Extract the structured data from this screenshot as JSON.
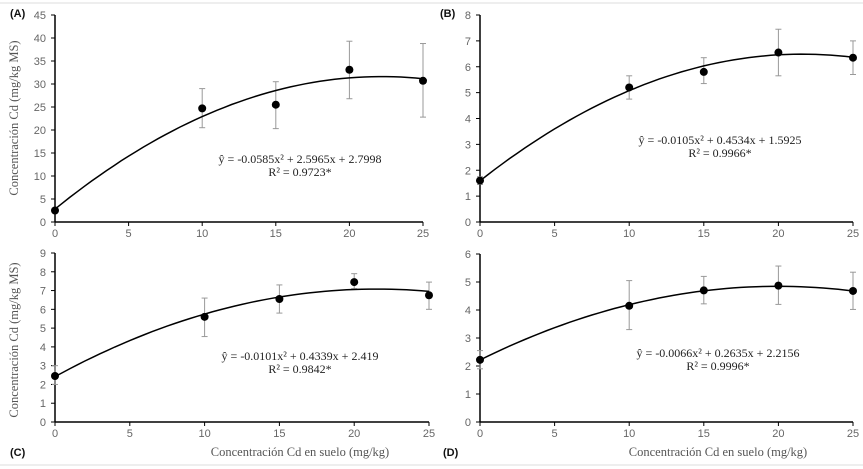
{
  "chart_data": [
    {
      "type": "scatter",
      "panel_label": "(A)",
      "ylabel": "Concentración Cd (mg/kg MS)",
      "xlabel": "",
      "x": [
        0,
        10,
        15,
        20,
        25
      ],
      "y": [
        2.5,
        24.7,
        25.5,
        33.1,
        30.7
      ],
      "err_low": [
        2.2,
        20.5,
        20.3,
        26.8,
        22.8
      ],
      "err_high": [
        2.8,
        29.0,
        30.5,
        39.3,
        38.8
      ],
      "ylim": [
        0,
        45
      ],
      "yticks": [
        0,
        5,
        10,
        15,
        20,
        25,
        30,
        35,
        40,
        45
      ],
      "xlim": [
        0,
        25
      ],
      "xticks": [
        0,
        5,
        10,
        15,
        20,
        25
      ],
      "fit": {
        "a": -0.0585,
        "b": 2.5965,
        "c": 2.7998
      },
      "equation": "ŷ = -0.0585x² + 2.5965x + 2.7998",
      "r2": "R² = 0.9723*"
    },
    {
      "type": "scatter",
      "panel_label": "(B)",
      "ylabel": "",
      "xlabel": "",
      "x": [
        0,
        10,
        15,
        20,
        25
      ],
      "y": [
        1.6,
        5.2,
        5.8,
        6.55,
        6.35
      ],
      "err_low": [
        1.45,
        4.75,
        5.35,
        5.65,
        5.7
      ],
      "err_high": [
        1.75,
        5.65,
        6.35,
        7.45,
        7.0
      ],
      "ylim": [
        0,
        8
      ],
      "yticks": [
        0,
        1,
        2,
        3,
        4,
        5,
        6,
        7,
        8
      ],
      "xlim": [
        0,
        25
      ],
      "xticks": [
        0,
        5,
        10,
        15,
        20,
        25
      ],
      "fit": {
        "a": -0.0105,
        "b": 0.4534,
        "c": 1.5925
      },
      "equation": "ŷ = -0.0105x² + 0.4534x + 1.5925",
      "r2": "R² = 0.9966*"
    },
    {
      "type": "scatter",
      "panel_label": "(C)",
      "ylabel": "Concentración Cd (mg/kg MS)",
      "xlabel": "Concentración Cd en suelo (mg/kg)",
      "x": [
        0,
        10,
        15,
        20,
        25
      ],
      "y": [
        2.45,
        5.6,
        6.55,
        7.45,
        6.75
      ],
      "err_low": [
        2.0,
        4.55,
        5.8,
        7.1,
        6.0
      ],
      "err_high": [
        3.0,
        6.6,
        7.3,
        7.9,
        7.45
      ],
      "ylim": [
        0,
        9
      ],
      "yticks": [
        0,
        1,
        2,
        3,
        4,
        5,
        6,
        7,
        8,
        9
      ],
      "xlim": [
        0,
        25
      ],
      "xticks": [
        0,
        5,
        10,
        15,
        20,
        25
      ],
      "fit": {
        "a": -0.0101,
        "b": 0.4339,
        "c": 2.419
      },
      "equation": "ŷ = -0.0101x² + 0.4339x + 2.419",
      "r2": "R² = 0.9842*"
    },
    {
      "type": "scatter",
      "panel_label": "(D)",
      "ylabel": "",
      "xlabel": "Concentración Cd en suelo (mg/kg)",
      "x": [
        0,
        10,
        15,
        20,
        25
      ],
      "y": [
        2.22,
        4.15,
        4.7,
        4.87,
        4.68
      ],
      "err_low": [
        1.9,
        3.3,
        4.22,
        4.2,
        4.02
      ],
      "err_high": [
        2.55,
        5.05,
        5.2,
        5.57,
        5.35
      ],
      "ylim": [
        0,
        6
      ],
      "yticks": [
        0,
        1,
        2,
        3,
        4,
        5,
        6
      ],
      "xlim": [
        0,
        25
      ],
      "xticks": [
        0,
        5,
        10,
        15,
        20,
        25
      ],
      "fit": {
        "a": -0.0066,
        "b": 0.2635,
        "c": 2.2156
      },
      "equation": "ŷ = -0.0066x² + 0.2635x + 2.2156",
      "r2": "R² = 0.9996*"
    }
  ]
}
